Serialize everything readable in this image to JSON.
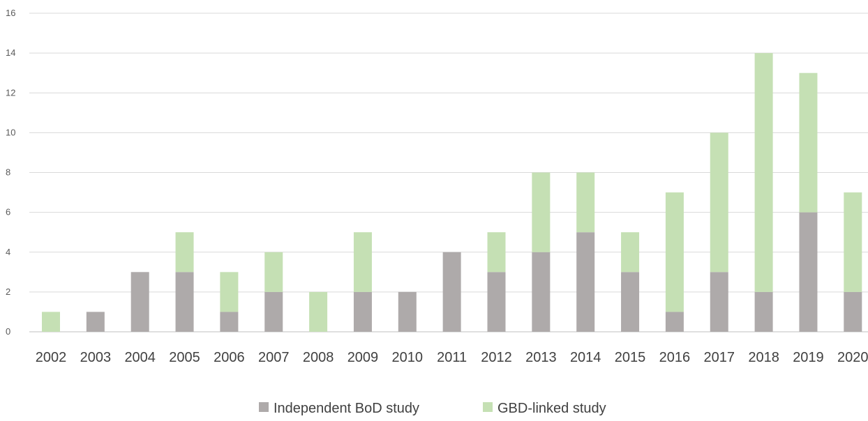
{
  "chart_data": {
    "type": "bar",
    "stacked": true,
    "title": "",
    "xlabel": "",
    "ylabel": "",
    "categories": [
      "2002",
      "2003",
      "2004",
      "2005",
      "2006",
      "2007",
      "2008",
      "2009",
      "2010",
      "2011",
      "2012",
      "2013",
      "2014",
      "2015",
      "2016",
      "2017",
      "2018",
      "2019",
      "2020"
    ],
    "series": [
      {
        "name": "Independent BoD study",
        "color": "#aeaaaa",
        "values": [
          0,
          1,
          3,
          3,
          1,
          2,
          0,
          2,
          2,
          4,
          3,
          4,
          5,
          3,
          1,
          3,
          2,
          6,
          2
        ]
      },
      {
        "name": "GBD-linked study",
        "color": "#c5e0b4",
        "values": [
          1,
          0,
          0,
          2,
          2,
          2,
          2,
          3,
          0,
          0,
          2,
          4,
          3,
          2,
          6,
          7,
          12,
          7,
          5
        ]
      }
    ],
    "ylim": [
      0,
      16
    ],
    "yticks": [
      0,
      2,
      4,
      6,
      8,
      10,
      12,
      14,
      16
    ],
    "grid": true,
    "legend_position": "bottom"
  }
}
